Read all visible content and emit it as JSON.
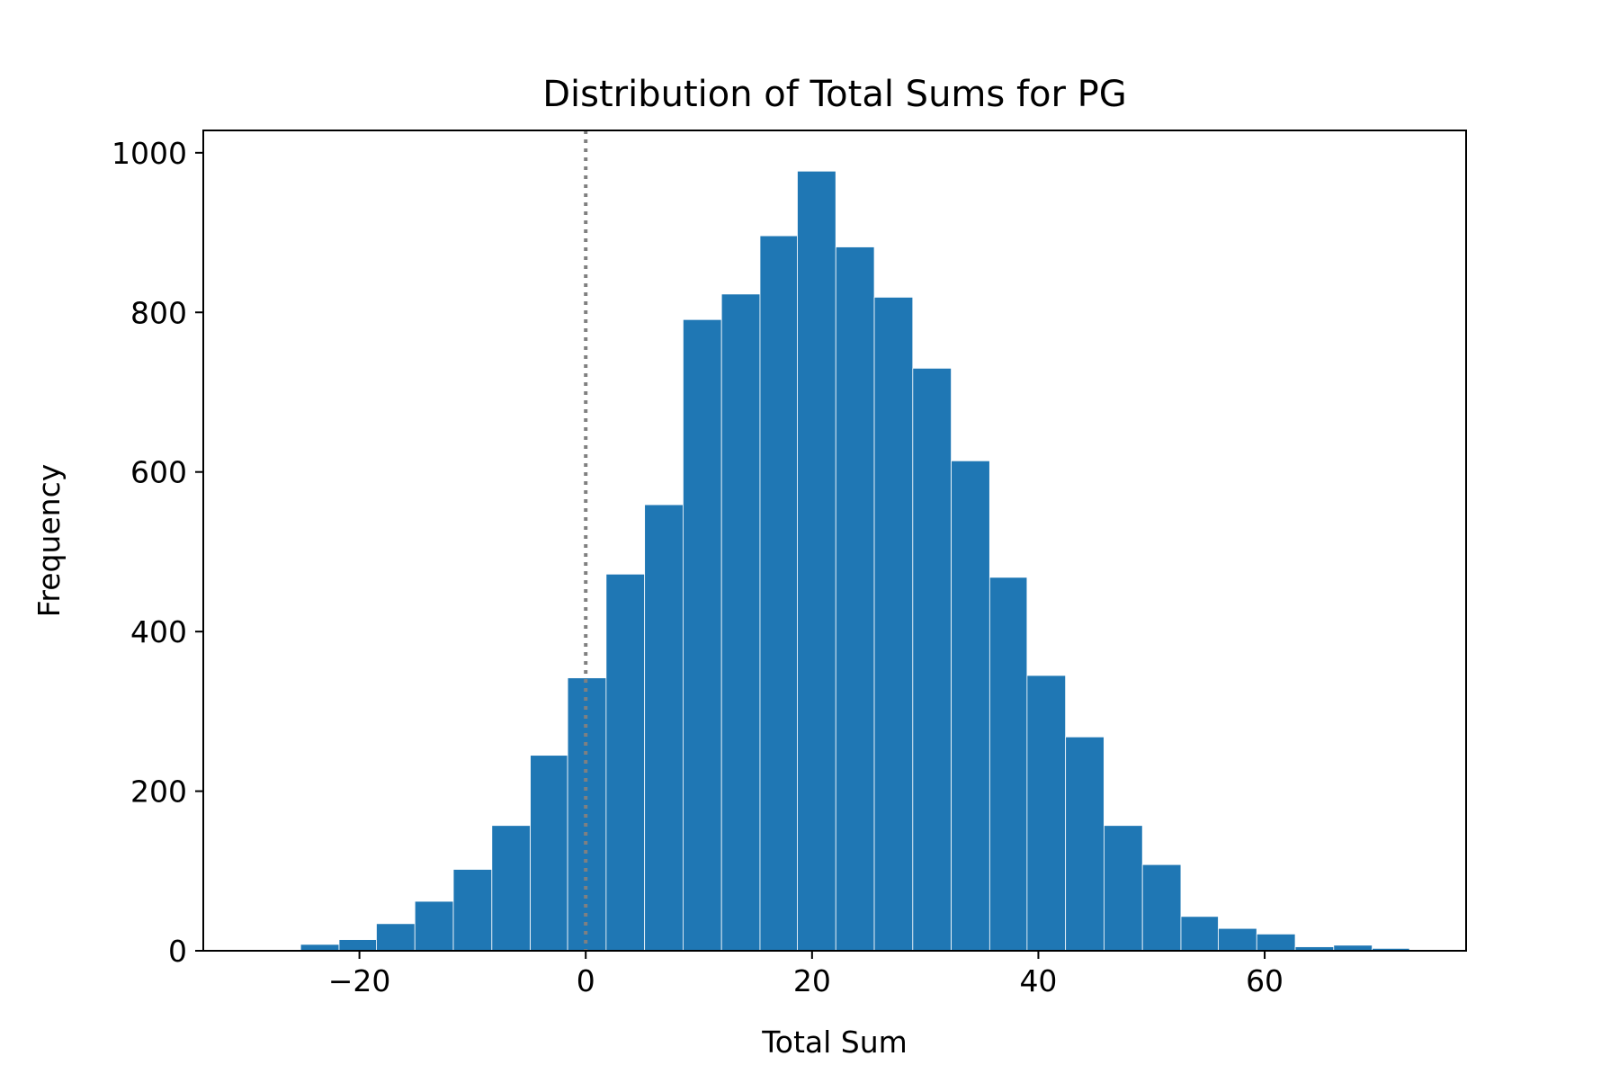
{
  "chart_data": {
    "type": "bar",
    "title": "Distribution of Total Sums for PG",
    "xlabel": "Total Sum",
    "ylabel": "Frequency",
    "xlim": [
      -33.8,
      77.8
    ],
    "ylim": [
      0,
      1028
    ],
    "xticks": [
      -20,
      0,
      20,
      40,
      60
    ],
    "xtick_labels": [
      "−20",
      "0",
      "20",
      "40",
      "60"
    ],
    "yticks": [
      0,
      200,
      400,
      600,
      800,
      1000
    ],
    "ytick_labels": [
      "0",
      "200",
      "400",
      "600",
      "800",
      "1000"
    ],
    "grid": false,
    "legend": "none",
    "bar_color": "#1f77b4",
    "reference_line": {
      "x": 0,
      "style": "dotted",
      "color": "#808080"
    },
    "bins": [
      {
        "x0": -25.2,
        "x1": -21.8,
        "count": 8
      },
      {
        "x0": -21.8,
        "x1": -18.5,
        "count": 14
      },
      {
        "x0": -18.5,
        "x1": -15.1,
        "count": 34
      },
      {
        "x0": -15.1,
        "x1": -11.7,
        "count": 62
      },
      {
        "x0": -11.7,
        "x1": -8.3,
        "count": 102
      },
      {
        "x0": -8.3,
        "x1": -4.9,
        "count": 157
      },
      {
        "x0": -4.9,
        "x1": -1.6,
        "count": 245
      },
      {
        "x0": -1.6,
        "x1": 1.8,
        "count": 342
      },
      {
        "x0": 1.8,
        "x1": 5.2,
        "count": 472
      },
      {
        "x0": 5.2,
        "x1": 8.6,
        "count": 559
      },
      {
        "x0": 8.6,
        "x1": 12.0,
        "count": 791
      },
      {
        "x0": 12.0,
        "x1": 15.4,
        "count": 823
      },
      {
        "x0": 15.4,
        "x1": 18.7,
        "count": 896
      },
      {
        "x0": 18.7,
        "x1": 22.1,
        "count": 977
      },
      {
        "x0": 22.1,
        "x1": 25.5,
        "count": 882
      },
      {
        "x0": 25.5,
        "x1": 28.9,
        "count": 819
      },
      {
        "x0": 28.9,
        "x1": 32.3,
        "count": 730
      },
      {
        "x0": 32.3,
        "x1": 35.7,
        "count": 614
      },
      {
        "x0": 35.7,
        "x1": 39.0,
        "count": 468
      },
      {
        "x0": 39.0,
        "x1": 42.4,
        "count": 345
      },
      {
        "x0": 42.4,
        "x1": 45.8,
        "count": 268
      },
      {
        "x0": 45.8,
        "x1": 49.2,
        "count": 157
      },
      {
        "x0": 49.2,
        "x1": 52.6,
        "count": 108
      },
      {
        "x0": 52.6,
        "x1": 55.9,
        "count": 43
      },
      {
        "x0": 55.9,
        "x1": 59.3,
        "count": 28
      },
      {
        "x0": 59.3,
        "x1": 62.7,
        "count": 21
      },
      {
        "x0": 62.7,
        "x1": 66.1,
        "count": 5
      },
      {
        "x0": 66.1,
        "x1": 69.5,
        "count": 7
      },
      {
        "x0": 69.5,
        "x1": 72.8,
        "count": 3
      }
    ]
  }
}
